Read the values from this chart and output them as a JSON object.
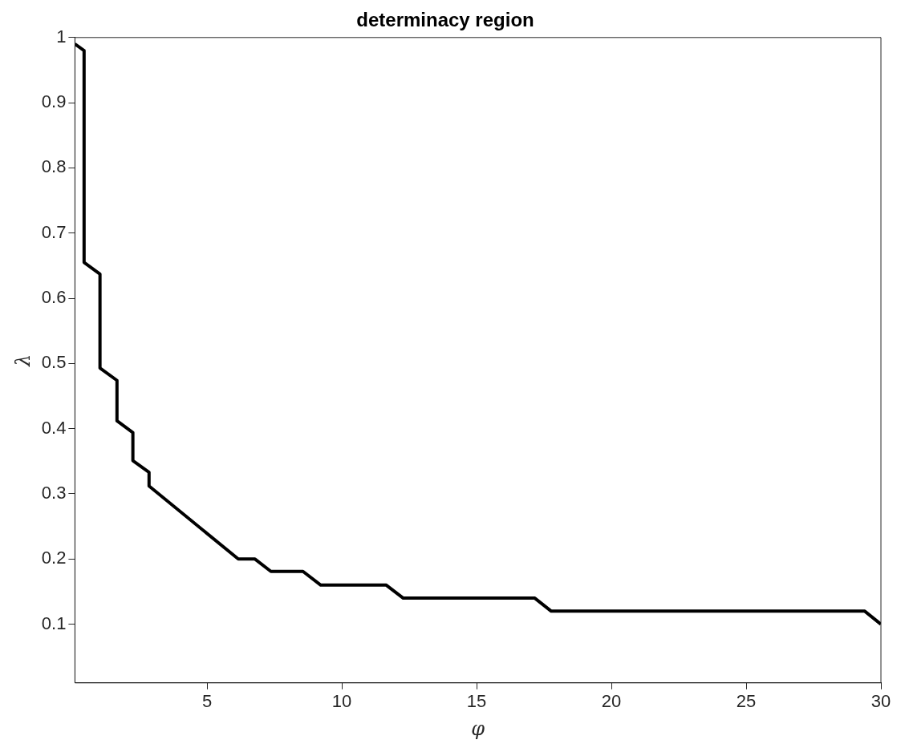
{
  "chart_data": {
    "type": "line",
    "title": "determinacy region",
    "xlabel": "φ",
    "ylabel": "λ",
    "xlim": [
      0.1,
      30
    ],
    "xticks": [
      5,
      10,
      15,
      20,
      25,
      30
    ],
    "ylim": [
      0.01,
      1
    ],
    "yticks": [
      0.1,
      0.2,
      0.3,
      0.4,
      0.5,
      0.6,
      0.7,
      0.8,
      0.9,
      1
    ],
    "grid": false,
    "legend": false,
    "marker": "none",
    "line_style": "solid",
    "series": [
      {
        "color": "#000000",
        "x": [
          0.1,
          0.44,
          0.44,
          1.03,
          1.03,
          1.66,
          1.66,
          2.25,
          2.25,
          2.85,
          2.85,
          6.16,
          6.78,
          7.37,
          8.56,
          9.22,
          11.65,
          12.28,
          17.16,
          17.77,
          29.4,
          30
        ],
        "values": [
          0.99,
          0.98,
          0.655,
          0.637,
          0.493,
          0.474,
          0.412,
          0.394,
          0.351,
          0.333,
          0.312,
          0.2,
          0.2,
          0.181,
          0.181,
          0.16,
          0.16,
          0.14,
          0.14,
          0.12,
          0.12,
          0.1
        ]
      }
    ]
  }
}
